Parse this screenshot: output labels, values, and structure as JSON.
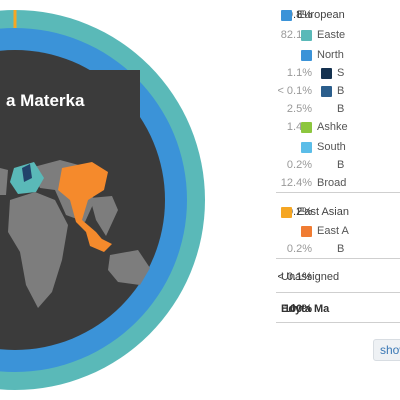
{
  "chart_data": {
    "type": "pie",
    "title": "",
    "segments": [
      {
        "name": "European",
        "value": 99.8,
        "color": "#3b93d8"
      },
      {
        "name": "East Asian",
        "value": 0.2,
        "color": "#f5a623"
      }
    ]
  },
  "profile": {
    "name_on_map": "a Materka",
    "name_full": "Edyta Ma"
  },
  "colors": {
    "outer_ring": "#5ab9b8",
    "inner_ring": "#3b93d8",
    "center": "#3b3b3b",
    "map_land": "#7d7d7d",
    "map_europe": "#5ab9b8",
    "map_asia": "#f58a2c",
    "map_dark": "#22436b"
  },
  "legend": {
    "rows": [
      {
        "pct": "99.8%",
        "label": "European",
        "swatch": "#3b93d8",
        "indent": 0,
        "style": "major"
      },
      {
        "pct": "82.1%",
        "label": "Easte",
        "swatch": "#5ab9b8",
        "indent": 1,
        "style": "dim"
      },
      {
        "pct": "",
        "label": "North",
        "swatch": "#3b93d8",
        "indent": 1,
        "style": "dim"
      },
      {
        "pct": "1.1%",
        "label": "S",
        "swatch": "#14314f",
        "indent": 2,
        "style": "dim"
      },
      {
        "pct": "< 0.1%",
        "label": "B",
        "swatch": "#2b5e8c",
        "indent": 2,
        "style": "dim"
      },
      {
        "pct": "2.5%",
        "label": "B",
        "swatch": "",
        "indent": 2,
        "style": "dim"
      },
      {
        "pct": "1.4%",
        "label": "Ashke",
        "swatch": "#8cc63e",
        "indent": 1,
        "style": "dim"
      },
      {
        "pct": "",
        "label": "South",
        "swatch": "#5bbde8",
        "indent": 1,
        "style": "dim"
      },
      {
        "pct": "0.2%",
        "label": "B",
        "swatch": "",
        "indent": 2,
        "style": "dim"
      },
      {
        "pct": "12.4%",
        "label": "Broad",
        "swatch": "",
        "indent": 1,
        "style": "dim"
      },
      {
        "pct": "0.2%",
        "label": "East Asian",
        "swatch": "#f5a623",
        "indent": 0,
        "style": "major"
      },
      {
        "pct": "",
        "label": "East A",
        "swatch": "#f07c33",
        "indent": 1,
        "style": "dim"
      },
      {
        "pct": "0.2%",
        "label": "B",
        "swatch": "",
        "indent": 2,
        "style": "dim"
      },
      {
        "pct": "< 0.1%",
        "label": "Unassigned",
        "swatch": "",
        "indent": 0,
        "style": "major"
      },
      {
        "pct": "100%",
        "label": "Edyta Ma",
        "swatch": "",
        "indent": 0,
        "style": "bold"
      }
    ],
    "show_more": "show"
  }
}
